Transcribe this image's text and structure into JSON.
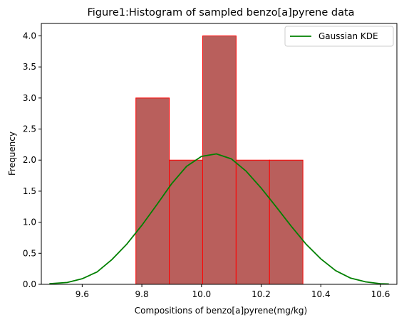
{
  "chart_data": {
    "type": "bar",
    "title": "Figure1:Histogram of sampled benzo[a]pyrene data",
    "xlabel": "Compositions of benzo[a]pyrene(mg/kg)",
    "ylabel": "Frequency",
    "xlim": [
      9.463,
      10.655
    ],
    "ylim": [
      0,
      4.2
    ],
    "x_ticks": [
      "9.6",
      "9.8",
      "10.0",
      "10.2",
      "10.4",
      "10.6"
    ],
    "x_tick_values": [
      9.6,
      9.8,
      10.0,
      10.2,
      10.4,
      10.6
    ],
    "y_ticks": [
      "0.0",
      "0.5",
      "1.0",
      "1.5",
      "2.0",
      "2.5",
      "3.0",
      "3.5",
      "4.0"
    ],
    "y_tick_values": [
      0,
      0.5,
      1.0,
      1.5,
      2.0,
      2.5,
      3.0,
      3.5,
      4.0
    ],
    "bins": [
      {
        "start": 9.78,
        "end": 9.892,
        "count": 3
      },
      {
        "start": 9.892,
        "end": 10.004,
        "count": 2
      },
      {
        "start": 10.004,
        "end": 10.116,
        "count": 4
      },
      {
        "start": 10.116,
        "end": 10.228,
        "count": 2
      },
      {
        "start": 10.228,
        "end": 10.34,
        "count": 2
      }
    ],
    "series": [
      {
        "name": "Gaussian KDE",
        "x": [
          9.49,
          9.55,
          9.6,
          9.65,
          9.7,
          9.75,
          9.8,
          9.85,
          9.9,
          9.95,
          10.0,
          10.05,
          10.1,
          10.15,
          10.2,
          10.25,
          10.3,
          10.35,
          10.4,
          10.45,
          10.5,
          10.55,
          10.6,
          10.628
        ],
        "y": [
          0.01,
          0.03,
          0.09,
          0.2,
          0.4,
          0.65,
          0.95,
          1.28,
          1.62,
          1.9,
          2.06,
          2.1,
          2.02,
          1.82,
          1.55,
          1.25,
          0.94,
          0.65,
          0.41,
          0.22,
          0.1,
          0.04,
          0.01,
          0.005
        ]
      }
    ],
    "legend_position": "top-right",
    "grid": false,
    "colors": {
      "bar_fill": "#b95f5c",
      "bar_edge": "#ff0000",
      "kde_line": "#008000",
      "legend_border": "#cccccc"
    }
  }
}
